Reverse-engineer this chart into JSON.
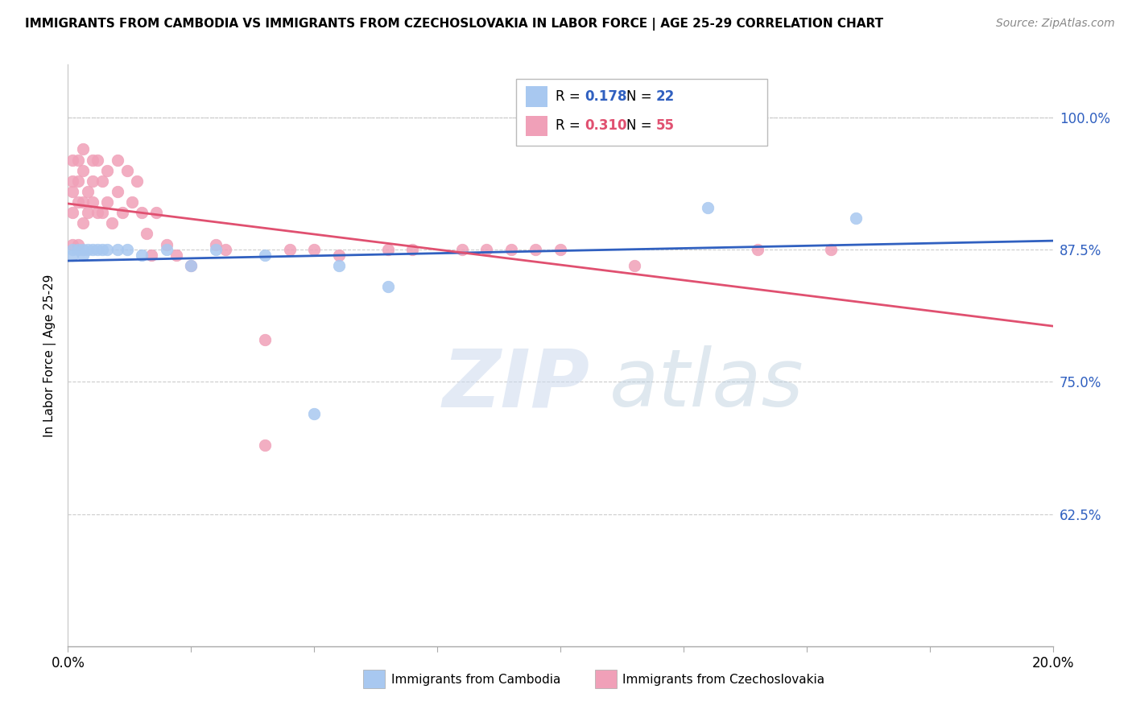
{
  "title": "IMMIGRANTS FROM CAMBODIA VS IMMIGRANTS FROM CZECHOSLOVAKIA IN LABOR FORCE | AGE 25-29 CORRELATION CHART",
  "source": "Source: ZipAtlas.com",
  "ylabel": "In Labor Force | Age 25-29",
  "xlim": [
    0.0,
    0.2
  ],
  "ylim": [
    0.5,
    1.05
  ],
  "yticks": [
    0.625,
    0.75,
    0.875,
    1.0
  ],
  "ytick_labels": [
    "62.5%",
    "75.0%",
    "87.5%",
    "100.0%"
  ],
  "xticks": [
    0.0,
    0.025,
    0.05,
    0.075,
    0.1,
    0.125,
    0.15,
    0.175,
    0.2
  ],
  "xtick_labels": [
    "0.0%",
    "",
    "",
    "",
    "",
    "",
    "",
    "",
    "20.0%"
  ],
  "legend_label1": "Immigrants from Cambodia",
  "legend_label2": "Immigrants from Czechoslovakia",
  "R1": 0.178,
  "N1": 22,
  "R2": 0.31,
  "N2": 55,
  "color1": "#a8c8f0",
  "color2": "#f0a0b8",
  "line_color1": "#3060c0",
  "line_color2": "#e05070",
  "watermark_zip": "ZIP",
  "watermark_atlas": "atlas",
  "cambodia_x": [
    0.001,
    0.001,
    0.002,
    0.003,
    0.003,
    0.004,
    0.005,
    0.006,
    0.007,
    0.008,
    0.01,
    0.012,
    0.015,
    0.02,
    0.025,
    0.03,
    0.04,
    0.05,
    0.055,
    0.065,
    0.13,
    0.16
  ],
  "cambodia_y": [
    0.875,
    0.87,
    0.875,
    0.875,
    0.87,
    0.875,
    0.875,
    0.875,
    0.875,
    0.875,
    0.875,
    0.875,
    0.87,
    0.875,
    0.86,
    0.875,
    0.87,
    0.72,
    0.86,
    0.84,
    0.915,
    0.905
  ],
  "czechoslovakia_x": [
    0.001,
    0.001,
    0.001,
    0.001,
    0.001,
    0.002,
    0.002,
    0.002,
    0.002,
    0.003,
    0.003,
    0.003,
    0.003,
    0.004,
    0.004,
    0.005,
    0.005,
    0.005,
    0.006,
    0.006,
    0.007,
    0.007,
    0.008,
    0.008,
    0.009,
    0.01,
    0.01,
    0.011,
    0.012,
    0.013,
    0.014,
    0.015,
    0.016,
    0.017,
    0.018,
    0.02,
    0.022,
    0.025,
    0.03,
    0.032,
    0.04,
    0.045,
    0.05,
    0.055,
    0.065,
    0.07,
    0.08,
    0.085,
    0.09,
    0.095,
    0.1,
    0.115,
    0.14,
    0.155,
    0.04
  ],
  "czechoslovakia_y": [
    0.93,
    0.96,
    0.94,
    0.91,
    0.88,
    0.96,
    0.94,
    0.92,
    0.88,
    0.97,
    0.95,
    0.92,
    0.9,
    0.93,
    0.91,
    0.96,
    0.94,
    0.92,
    0.96,
    0.91,
    0.94,
    0.91,
    0.95,
    0.92,
    0.9,
    0.96,
    0.93,
    0.91,
    0.95,
    0.92,
    0.94,
    0.91,
    0.89,
    0.87,
    0.91,
    0.88,
    0.87,
    0.86,
    0.88,
    0.875,
    0.79,
    0.875,
    0.875,
    0.87,
    0.875,
    0.875,
    0.875,
    0.875,
    0.875,
    0.875,
    0.875,
    0.86,
    0.875,
    0.875,
    0.69
  ]
}
